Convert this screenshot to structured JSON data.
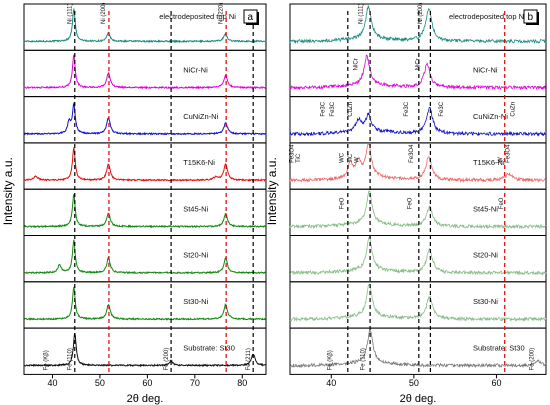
{
  "chart_data": [
    {
      "panel_label": "a",
      "type": "line",
      "xlabel": "2θ deg.",
      "ylabel": "Intensity a.u.",
      "xlim": [
        34,
        85
      ],
      "xticks": [
        40,
        50,
        60,
        70,
        80
      ],
      "dashed_lines": [
        {
          "x": 44.7,
          "color": "#000000"
        },
        {
          "x": 51.9,
          "color": "#dd0000"
        },
        {
          "x": 65.0,
          "color": "#000000"
        },
        {
          "x": 76.6,
          "color": "#dd0000"
        },
        {
          "x": 82.3,
          "color": "#000000"
        }
      ],
      "series": [
        {
          "name": "electrodeposited top Ni",
          "color": "#1a8a80",
          "peaks": [
            [
              44.5,
              1.0,
              0.35
            ],
            [
              51.8,
              0.25,
              0.4
            ],
            [
              76.4,
              0.22,
              0.45
            ]
          ],
          "annotations": [
            {
              "text": "Ni (111)",
              "x": 44.0
            },
            {
              "text": "Ni (200)",
              "x": 51.1
            },
            {
              "text": "Ni (220)",
              "x": 75.8
            }
          ]
        },
        {
          "name": "NiCr-Ni",
          "color": "#dd00dd",
          "peaks": [
            [
              44.5,
              1.0,
              0.35
            ],
            [
              51.8,
              0.45,
              0.45
            ],
            [
              76.5,
              0.4,
              0.45
            ]
          ],
          "annotations": []
        },
        {
          "name": "CuNiZn-Ni",
          "color": "#1010c8",
          "peaks": [
            [
              43.5,
              0.35,
              0.4
            ],
            [
              44.5,
              0.9,
              0.35
            ],
            [
              51.8,
              0.5,
              0.45
            ],
            [
              76.5,
              0.35,
              0.45
            ]
          ],
          "annotations": []
        },
        {
          "name": "T15K6-Ni",
          "color": "#dd1111",
          "peaks": [
            [
              36.5,
              0.12,
              0.5
            ],
            [
              44.5,
              1.0,
              0.35
            ],
            [
              51.8,
              0.5,
              0.45
            ],
            [
              76.5,
              0.5,
              0.45
            ],
            [
              74.5,
              0.1,
              0.6
            ]
          ],
          "annotations": []
        },
        {
          "name": "St45-Ni",
          "color": "#118811",
          "peaks": [
            [
              44.5,
              1.0,
              0.35
            ],
            [
              51.8,
              0.4,
              0.45
            ],
            [
              76.5,
              0.4,
              0.45
            ]
          ],
          "annotations": []
        },
        {
          "name": "St20-Ni",
          "color": "#118811",
          "peaks": [
            [
              41.5,
              0.25,
              0.4
            ],
            [
              44.5,
              1.0,
              0.35
            ],
            [
              51.8,
              0.45,
              0.45
            ],
            [
              76.5,
              0.45,
              0.45
            ]
          ],
          "annotations": []
        },
        {
          "name": "St30-Ni",
          "color": "#118811",
          "peaks": [
            [
              44.5,
              1.0,
              0.35
            ],
            [
              51.8,
              0.45,
              0.45
            ],
            [
              76.5,
              0.45,
              0.45
            ]
          ],
          "annotations": []
        },
        {
          "name": "Substrate: St30",
          "color": "#111111",
          "peaks": [
            [
              44.7,
              1.0,
              0.35
            ],
            [
              65.0,
              0.15,
              0.4
            ],
            [
              82.3,
              0.35,
              0.45
            ]
          ],
          "annotations": [
            {
              "text": "Fe (Kβ)",
              "x": 39.0
            },
            {
              "text": "Fe (110)",
              "x": 44.0
            },
            {
              "text": "Fe (200)",
              "x": 64.3
            },
            {
              "text": "Fe (211)",
              "x": 81.6
            }
          ]
        }
      ]
    },
    {
      "panel_label": "b",
      "type": "line",
      "xlabel": "2θ deg.",
      "ylabel": "Intensity a.u.",
      "xlim": [
        35,
        66
      ],
      "xticks": [
        40,
        50,
        60
      ],
      "dashed_lines": [
        {
          "x": 42.0,
          "color": "#000000"
        },
        {
          "x": 44.7,
          "color": "#000000"
        },
        {
          "x": 50.6,
          "color": "#000000"
        },
        {
          "x": 52.0,
          "color": "#000000"
        },
        {
          "x": 61.0,
          "color": "#dd0000"
        }
      ],
      "series": [
        {
          "name": "electrodeposited top Ni",
          "color": "#1a8a80",
          "peaks": [
            [
              44.5,
              1.0,
              0.4
            ],
            [
              51.8,
              1.0,
              0.45
            ]
          ],
          "annotations": [
            {
              "text": "Ni (111)",
              "x": 43.8
            },
            {
              "text": "Ni (200)",
              "x": 51.0
            }
          ]
        },
        {
          "name": "NiCr-Ni",
          "color": "#dd00dd",
          "peaks": [
            [
              44.3,
              0.9,
              0.4
            ],
            [
              51.6,
              0.7,
              0.45
            ]
          ],
          "annotations": [
            {
              "text": "NiCr",
              "x": 43.2
            },
            {
              "text": "NiCr",
              "x": 50.7
            }
          ]
        },
        {
          "name": "CuNiZn-Ni",
          "color": "#1010c8",
          "peaks": [
            [
              43.3,
              0.35,
              0.4
            ],
            [
              44.5,
              0.5,
              0.4
            ],
            [
              51.9,
              0.8,
              0.45
            ]
          ],
          "annotations": [
            {
              "text": "Fe3C",
              "x": 39.2
            },
            {
              "text": "Fe3C",
              "x": 40.3
            },
            {
              "text": "CuZn",
              "x": 42.5
            },
            {
              "text": "Fe3C",
              "x": 49.3
            },
            {
              "text": "Fe3C",
              "x": 53.5
            },
            {
              "text": "CuZn",
              "x": 62.2
            }
          ]
        },
        {
          "name": "T15K6-Ni",
          "color": "#ee6666",
          "peaks": [
            [
              42.3,
              0.45,
              0.35
            ],
            [
              43.3,
              0.5,
              0.35
            ],
            [
              44.5,
              1.0,
              0.4
            ],
            [
              51.8,
              0.7,
              0.45
            ],
            [
              61.5,
              0.2,
              0.5
            ]
          ],
          "annotations": [
            {
              "text": "Fe3O4",
              "x": 35.4
            },
            {
              "text": "TiC",
              "x": 36.2
            },
            {
              "text": "WC",
              "x": 41.5
            },
            {
              "text": "TiC",
              "x": 42.5
            },
            {
              "text": "W",
              "x": 43.3
            },
            {
              "text": "Fe3O4",
              "x": 49.9
            },
            {
              "text": "W",
              "x": 60.7
            },
            {
              "text": "Fe3O4",
              "x": 61.6
            }
          ]
        },
        {
          "name": "St45-Ni",
          "color": "#88bb88",
          "peaks": [
            [
              44.6,
              1.0,
              0.4
            ],
            [
              51.9,
              0.6,
              0.45
            ]
          ],
          "annotations": [
            {
              "text": "FeO",
              "x": 41.5
            },
            {
              "text": "FeO",
              "x": 49.7
            },
            {
              "text": "FeO",
              "x": 60.8
            }
          ]
        },
        {
          "name": "St20-Ni",
          "color": "#88bb88",
          "peaks": [
            [
              44.6,
              1.0,
              0.4
            ],
            [
              51.9,
              0.7,
              0.45
            ]
          ],
          "annotations": []
        },
        {
          "name": "St30-Ni",
          "color": "#88bb88",
          "peaks": [
            [
              44.6,
              1.0,
              0.4
            ],
            [
              51.9,
              0.7,
              0.45
            ]
          ],
          "annotations": []
        },
        {
          "name": "Substrate: St30",
          "color": "#777777",
          "peaks": [
            [
              44.7,
              1.0,
              0.4
            ],
            [
              65.0,
              0.12,
              0.45
            ]
          ],
          "annotations": [
            {
              "text": "Fe (Kβ)",
              "x": 40.0
            },
            {
              "text": "Fe (110)",
              "x": 44.0
            },
            {
              "text": "Fe (200)",
              "x": 64.5
            }
          ]
        }
      ]
    }
  ]
}
